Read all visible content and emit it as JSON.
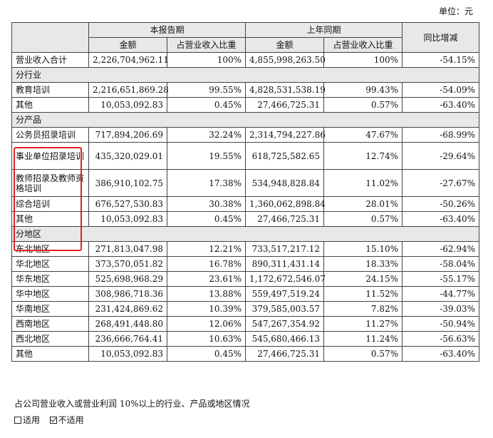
{
  "unit_label": "单位：元",
  "header": {
    "current_period": "本报告期",
    "prior_period": "上年同期",
    "yoy": "同比增减",
    "amount": "金额",
    "share": "占营业收入比重"
  },
  "total": {
    "label": "营业收入合计",
    "cur_amount": "2,226,704,962.11",
    "cur_share": "100%",
    "prev_amount": "4,855,998,263.50",
    "prev_share": "100%",
    "yoy": "-54.15%"
  },
  "sections": [
    {
      "title": "分行业",
      "rows": [
        {
          "label": "教育培训",
          "cur_amount": "2,216,651,869.28",
          "cur_share": "99.55%",
          "prev_amount": "4,828,531,538.19",
          "prev_share": "99.43%",
          "yoy": "-54.09%"
        },
        {
          "label": "其他",
          "cur_amount": "10,053,092.83",
          "cur_share": "0.45%",
          "prev_amount": "27,466,725.31",
          "prev_share": "0.57%",
          "yoy": "-63.40%"
        }
      ]
    },
    {
      "title": "分产品",
      "rows": [
        {
          "label": "公务员招录培训",
          "cur_amount": "717,894,206.69",
          "cur_share": "32.24%",
          "prev_amount": "2,314,794,227.86",
          "prev_share": "47.67%",
          "yoy": "-68.99%"
        },
        {
          "label": "事业单位招录培训",
          "cur_amount": "435,320,029.01",
          "cur_share": "19.55%",
          "prev_amount": "618,725,582.65",
          "prev_share": "12.74%",
          "yoy": "-29.64%"
        },
        {
          "label": "教师招录及教师资格培训",
          "cur_amount": "386,910,102.75",
          "cur_share": "17.38%",
          "prev_amount": "534,948,828.84",
          "prev_share": "11.02%",
          "yoy": "-27.67%"
        },
        {
          "label": "综合培训",
          "cur_amount": "676,527,530.83",
          "cur_share": "30.38%",
          "prev_amount": "1,360,062,898.84",
          "prev_share": "28.01%",
          "yoy": "-50.26%"
        },
        {
          "label": "其他",
          "cur_amount": "10,053,092.83",
          "cur_share": "0.45%",
          "prev_amount": "27,466,725.31",
          "prev_share": "0.57%",
          "yoy": "-63.40%"
        }
      ]
    },
    {
      "title": "分地区",
      "rows": [
        {
          "label": "东北地区",
          "cur_amount": "271,813,047.98",
          "cur_share": "12.21%",
          "prev_amount": "733,517,217.12",
          "prev_share": "15.10%",
          "yoy": "-62.94%"
        },
        {
          "label": "华北地区",
          "cur_amount": "373,570,051.82",
          "cur_share": "16.78%",
          "prev_amount": "890,311,431.14",
          "prev_share": "18.33%",
          "yoy": "-58.04%"
        },
        {
          "label": "华东地区",
          "cur_amount": "525,698,968.29",
          "cur_share": "23.61%",
          "prev_amount": "1,172,672,546.07",
          "prev_share": "24.15%",
          "yoy": "-55.17%"
        },
        {
          "label": "华中地区",
          "cur_amount": "308,986,718.36",
          "cur_share": "13.88%",
          "prev_amount": "559,497,519.24",
          "prev_share": "11.52%",
          "yoy": "-44.77%"
        },
        {
          "label": "华南地区",
          "cur_amount": "231,424,869.62",
          "cur_share": "10.39%",
          "prev_amount": "379,585,003.57",
          "prev_share": "7.82%",
          "yoy": "-39.03%"
        },
        {
          "label": "西南地区",
          "cur_amount": "268,491,448.80",
          "cur_share": "12.06%",
          "prev_amount": "547,267,354.92",
          "prev_share": "11.27%",
          "yoy": "-50.94%"
        },
        {
          "label": "西北地区",
          "cur_amount": "236,666,764.41",
          "cur_share": "10.63%",
          "prev_amount": "545,680,466.13",
          "prev_share": "11.24%",
          "yoy": "-56.63%"
        },
        {
          "label": "其他",
          "cur_amount": "10,053,092.83",
          "cur_share": "0.45%",
          "prev_amount": "27,466,725.31",
          "prev_share": "0.57%",
          "yoy": "-63.40%"
        }
      ]
    }
  ],
  "note": "占公司营业收入或营业利润 10%以上的行业、产品或地区情况",
  "options": {
    "applicable": "适用",
    "not_applicable": "不适用",
    "selected": "not_applicable"
  },
  "colors": {
    "header_bg": "#e8e8e8",
    "highlight": "#e02020"
  }
}
